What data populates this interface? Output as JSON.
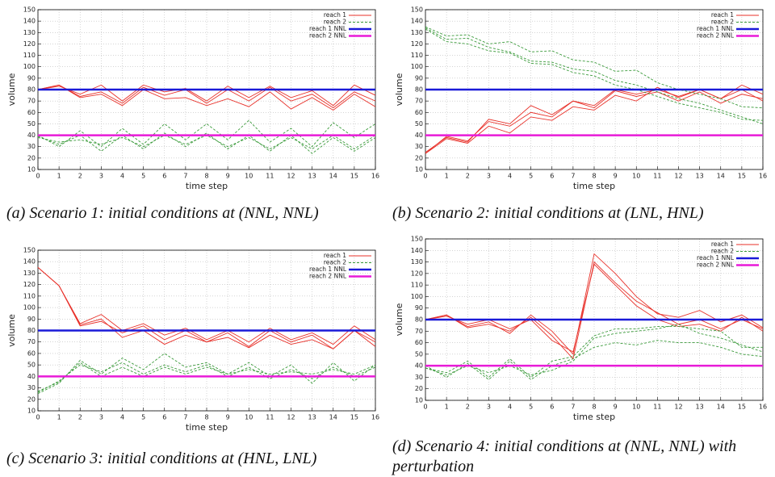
{
  "chart_data": [
    {
      "type": "line",
      "title": "(a) Scenario 1: initial conditions at (NNL, NNL)",
      "xlabel": "time step",
      "ylabel": "volume",
      "x": [
        0,
        1,
        2,
        3,
        4,
        5,
        6,
        7,
        8,
        9,
        10,
        11,
        12,
        13,
        14,
        15,
        16
      ],
      "xlim": [
        0,
        16
      ],
      "xticks": [
        0,
        1,
        2,
        3,
        4,
        5,
        6,
        7,
        8,
        9,
        10,
        11,
        12,
        13,
        14,
        15,
        16
      ],
      "ylim": [
        10,
        150
      ],
      "yticks": [
        10,
        20,
        30,
        40,
        50,
        60,
        70,
        80,
        90,
        100,
        110,
        120,
        130,
        140,
        150
      ],
      "grid": true,
      "legend": "upper right",
      "series": [
        {
          "name": "reach 1",
          "color": "#e8312a",
          "style": "solid",
          "width": 0.9,
          "values": [
            [
              80,
              84,
              74,
              78,
              68,
              82,
              75,
              80,
              68,
              80,
              70,
              82,
              70,
              76,
              64,
              78,
              70
            ],
            [
              80,
              83,
              76,
              84,
              70,
              84,
              78,
              81,
              70,
              83,
              73,
              83,
              73,
              79,
              66,
              84,
              75
            ],
            [
              80,
              84,
              73,
              76,
              66,
              80,
              72,
              73,
              66,
              72,
              65,
              78,
              63,
              73,
              62,
              76,
              65
            ]
          ]
        },
        {
          "name": "reach 2",
          "color": "#3a9a3a",
          "style": "dashed",
          "width": 0.9,
          "values": [
            [
              40,
              30,
              44,
              30,
              46,
              32,
              50,
              36,
              50,
              36,
              53,
              34,
              46,
              30,
              51,
              38,
              50
            ],
            [
              39,
              32,
              40,
              26,
              40,
              28,
              42,
              30,
              42,
              28,
              40,
              26,
              40,
              24,
              38,
              26,
              38
            ],
            [
              38,
              34,
              36,
              32,
              38,
              30,
              40,
              32,
              40,
              30,
              38,
              28,
              38,
              28,
              40,
              28,
              40
            ]
          ]
        },
        {
          "name": "reach 1 NNL",
          "color": "#1a1ad8",
          "style": "solid",
          "width": 2.5,
          "values": [
            [
              80,
              80,
              80,
              80,
              80,
              80,
              80,
              80,
              80,
              80,
              80,
              80,
              80,
              80,
              80,
              80,
              80
            ]
          ]
        },
        {
          "name": "reach 2 NNL",
          "color": "#e81ad8",
          "style": "solid",
          "width": 2.5,
          "values": [
            [
              40,
              40,
              40,
              40,
              40,
              40,
              40,
              40,
              40,
              40,
              40,
              40,
              40,
              40,
              40,
              40,
              40
            ]
          ]
        }
      ]
    },
    {
      "type": "line",
      "title": "(b) Scenario 2: initial conditions at (LNL, HNL)",
      "xlabel": "time step",
      "ylabel": "volume",
      "x": [
        0,
        1,
        2,
        3,
        4,
        5,
        6,
        7,
        8,
        9,
        10,
        11,
        12,
        13,
        14,
        15,
        16
      ],
      "xlim": [
        0,
        16
      ],
      "xticks": [
        0,
        1,
        2,
        3,
        4,
        5,
        6,
        7,
        8,
        9,
        10,
        11,
        12,
        13,
        14,
        15,
        16
      ],
      "ylim": [
        10,
        150
      ],
      "yticks": [
        10,
        20,
        30,
        40,
        50,
        60,
        70,
        80,
        90,
        100,
        110,
        120,
        130,
        140,
        150
      ],
      "grid": true,
      "legend": "upper right",
      "series": [
        {
          "name": "reach 1",
          "color": "#e8312a",
          "style": "solid",
          "width": 0.9,
          "values": [
            [
              24,
              37,
              33,
              48,
              42,
              56,
              53,
              65,
              62,
              75,
              70,
              82,
              73,
              80,
              72,
              80,
              70
            ],
            [
              24,
              39,
              35,
              52,
              48,
              60,
              56,
              70,
              64,
              79,
              74,
              78,
              70,
              78,
              68,
              76,
              72
            ],
            [
              25,
              38,
              34,
              54,
              50,
              66,
              58,
              70,
              66,
              80,
              76,
              80,
              74,
              80,
              72,
              84,
              76
            ]
          ]
        },
        {
          "name": "reach 2",
          "color": "#3a9a3a",
          "style": "dashed",
          "width": 0.9,
          "values": [
            [
              135,
              127,
              128,
              120,
              122,
              113,
              114,
              106,
              104,
              96,
              97,
              86,
              80,
              76,
              72,
              65,
              64
            ],
            [
              134,
              124,
              125,
              117,
              113,
              105,
              104,
              98,
              96,
              88,
              84,
              78,
              72,
              68,
              62,
              56,
              50
            ],
            [
              133,
              122,
              120,
              114,
              112,
              103,
              102,
              95,
              92,
              84,
              80,
              74,
              68,
              64,
              60,
              54,
              53
            ]
          ]
        },
        {
          "name": "reach 1 NNL",
          "color": "#1a1ad8",
          "style": "solid",
          "width": 2.5,
          "values": [
            [
              80,
              80,
              80,
              80,
              80,
              80,
              80,
              80,
              80,
              80,
              80,
              80,
              80,
              80,
              80,
              80,
              80
            ]
          ]
        },
        {
          "name": "reach 2 NNL",
          "color": "#e81ad8",
          "style": "solid",
          "width": 2.5,
          "values": [
            [
              40,
              40,
              40,
              40,
              40,
              40,
              40,
              40,
              40,
              40,
              40,
              40,
              40,
              40,
              40,
              40,
              40
            ]
          ]
        }
      ]
    },
    {
      "type": "line",
      "title": "(c) Scenario 3: initial conditions at (HNL, LNL)",
      "xlabel": "time step",
      "ylabel": "volume",
      "x": [
        0,
        1,
        2,
        3,
        4,
        5,
        6,
        7,
        8,
        9,
        10,
        11,
        12,
        13,
        14,
        15,
        16
      ],
      "xlim": [
        0,
        16
      ],
      "xticks": [
        0,
        1,
        2,
        3,
        4,
        5,
        6,
        7,
        8,
        9,
        10,
        11,
        12,
        13,
        14,
        15,
        16
      ],
      "ylim": [
        10,
        150
      ],
      "yticks": [
        10,
        20,
        30,
        40,
        50,
        60,
        70,
        80,
        90,
        100,
        110,
        120,
        130,
        140,
        150
      ],
      "grid": true,
      "legend": "upper right",
      "series": [
        {
          "name": "reach 1",
          "color": "#e8312a",
          "style": "solid",
          "width": 0.9,
          "values": [
            [
              135,
              119,
              86,
              94,
              80,
              86,
              76,
              82,
              72,
              80,
              70,
              82,
              72,
              78,
              68,
              84,
              72
            ],
            [
              135,
              119,
              84,
              88,
              78,
              84,
              72,
              80,
              70,
              78,
              66,
              80,
              70,
              76,
              64,
              80,
              66
            ],
            [
              135,
              119,
              85,
              90,
              74,
              80,
              68,
              76,
              70,
              74,
              65,
              76,
              68,
              72,
              64,
              80,
              70
            ]
          ]
        },
        {
          "name": "reach 2",
          "color": "#3a9a3a",
          "style": "dashed",
          "width": 0.9,
          "values": [
            [
              25,
              34,
              54,
              42,
              56,
              46,
              60,
              48,
              52,
              42,
              52,
              40,
              50,
              34,
              52,
              36,
              50
            ],
            [
              26,
              36,
              50,
              44,
              52,
              42,
              50,
              44,
              50,
              40,
              48,
              38,
              46,
              38,
              48,
              40,
              48
            ],
            [
              27,
              35,
              52,
              40,
              48,
              40,
              48,
              42,
              48,
              42,
              46,
              42,
              44,
              42,
              46,
              42,
              50
            ]
          ]
        },
        {
          "name": "reach 1 NNL",
          "color": "#1a1ad8",
          "style": "solid",
          "width": 2.5,
          "values": [
            [
              80,
              80,
              80,
              80,
              80,
              80,
              80,
              80,
              80,
              80,
              80,
              80,
              80,
              80,
              80,
              80,
              80
            ]
          ]
        },
        {
          "name": "reach 2 NNL",
          "color": "#e81ad8",
          "style": "solid",
          "width": 2.5,
          "values": [
            [
              40,
              40,
              40,
              40,
              40,
              40,
              40,
              40,
              40,
              40,
              40,
              40,
              40,
              40,
              40,
              40,
              40
            ]
          ]
        }
      ]
    },
    {
      "type": "line",
      "title": "(d) Scenario 4: initial conditions at (NNL, NNL) with perturbation",
      "xlabel": "time step",
      "ylabel": "volume",
      "x": [
        0,
        1,
        2,
        3,
        4,
        5,
        6,
        7,
        8,
        9,
        10,
        11,
        12,
        13,
        14,
        15,
        16
      ],
      "xlim": [
        0,
        16
      ],
      "xticks": [
        0,
        1,
        2,
        3,
        4,
        5,
        6,
        7,
        8,
        9,
        10,
        11,
        12,
        13,
        14,
        15,
        16
      ],
      "ylim": [
        10,
        150
      ],
      "yticks": [
        10,
        20,
        30,
        40,
        50,
        60,
        70,
        80,
        90,
        100,
        110,
        120,
        130,
        140,
        150
      ],
      "grid": true,
      "legend": "upper right",
      "series": [
        {
          "name": "reach 1",
          "color": "#e8312a",
          "style": "solid",
          "width": 0.9,
          "values": [
            [
              80,
              84,
              74,
              78,
              68,
              84,
              70,
              50,
              137,
              120,
              100,
              85,
              82,
              88,
              78,
              84,
              73
            ],
            [
              80,
              84,
              73,
              76,
              70,
              82,
              66,
              46,
              130,
              112,
              96,
              86,
              76,
              80,
              72,
              80,
              72
            ],
            [
              80,
              83,
              76,
              80,
              72,
              80,
              62,
              52,
              128,
              110,
              92,
              80,
              74,
              76,
              70,
              82,
              70
            ]
          ]
        },
        {
          "name": "reach 2",
          "color": "#3a9a3a",
          "style": "dashed",
          "width": 0.9,
          "values": [
            [
              38,
              34,
              44,
              30,
              46,
              30,
              44,
              48,
              66,
              72,
              72,
              74,
              74,
              72,
              70,
              56,
              56
            ],
            [
              40,
              30,
              42,
              28,
              44,
              28,
              40,
              46,
              56,
              60,
              58,
              62,
              60,
              60,
              56,
              50,
              48
            ],
            [
              38,
              32,
              40,
              34,
              40,
              32,
              36,
              44,
              64,
              68,
              70,
              72,
              76,
              68,
              64,
              58,
              52
            ]
          ]
        },
        {
          "name": "reach 1 NNL",
          "color": "#1a1ad8",
          "style": "solid",
          "width": 2.5,
          "values": [
            [
              80,
              80,
              80,
              80,
              80,
              80,
              80,
              80,
              80,
              80,
              80,
              80,
              80,
              80,
              80,
              80,
              80
            ]
          ]
        },
        {
          "name": "reach 2 NNL",
          "color": "#e81ad8",
          "style": "solid",
          "width": 2.5,
          "values": [
            [
              40,
              40,
              40,
              40,
              40,
              40,
              40,
              40,
              40,
              40,
              40,
              40,
              40,
              40,
              40,
              40,
              40
            ]
          ]
        }
      ]
    }
  ]
}
